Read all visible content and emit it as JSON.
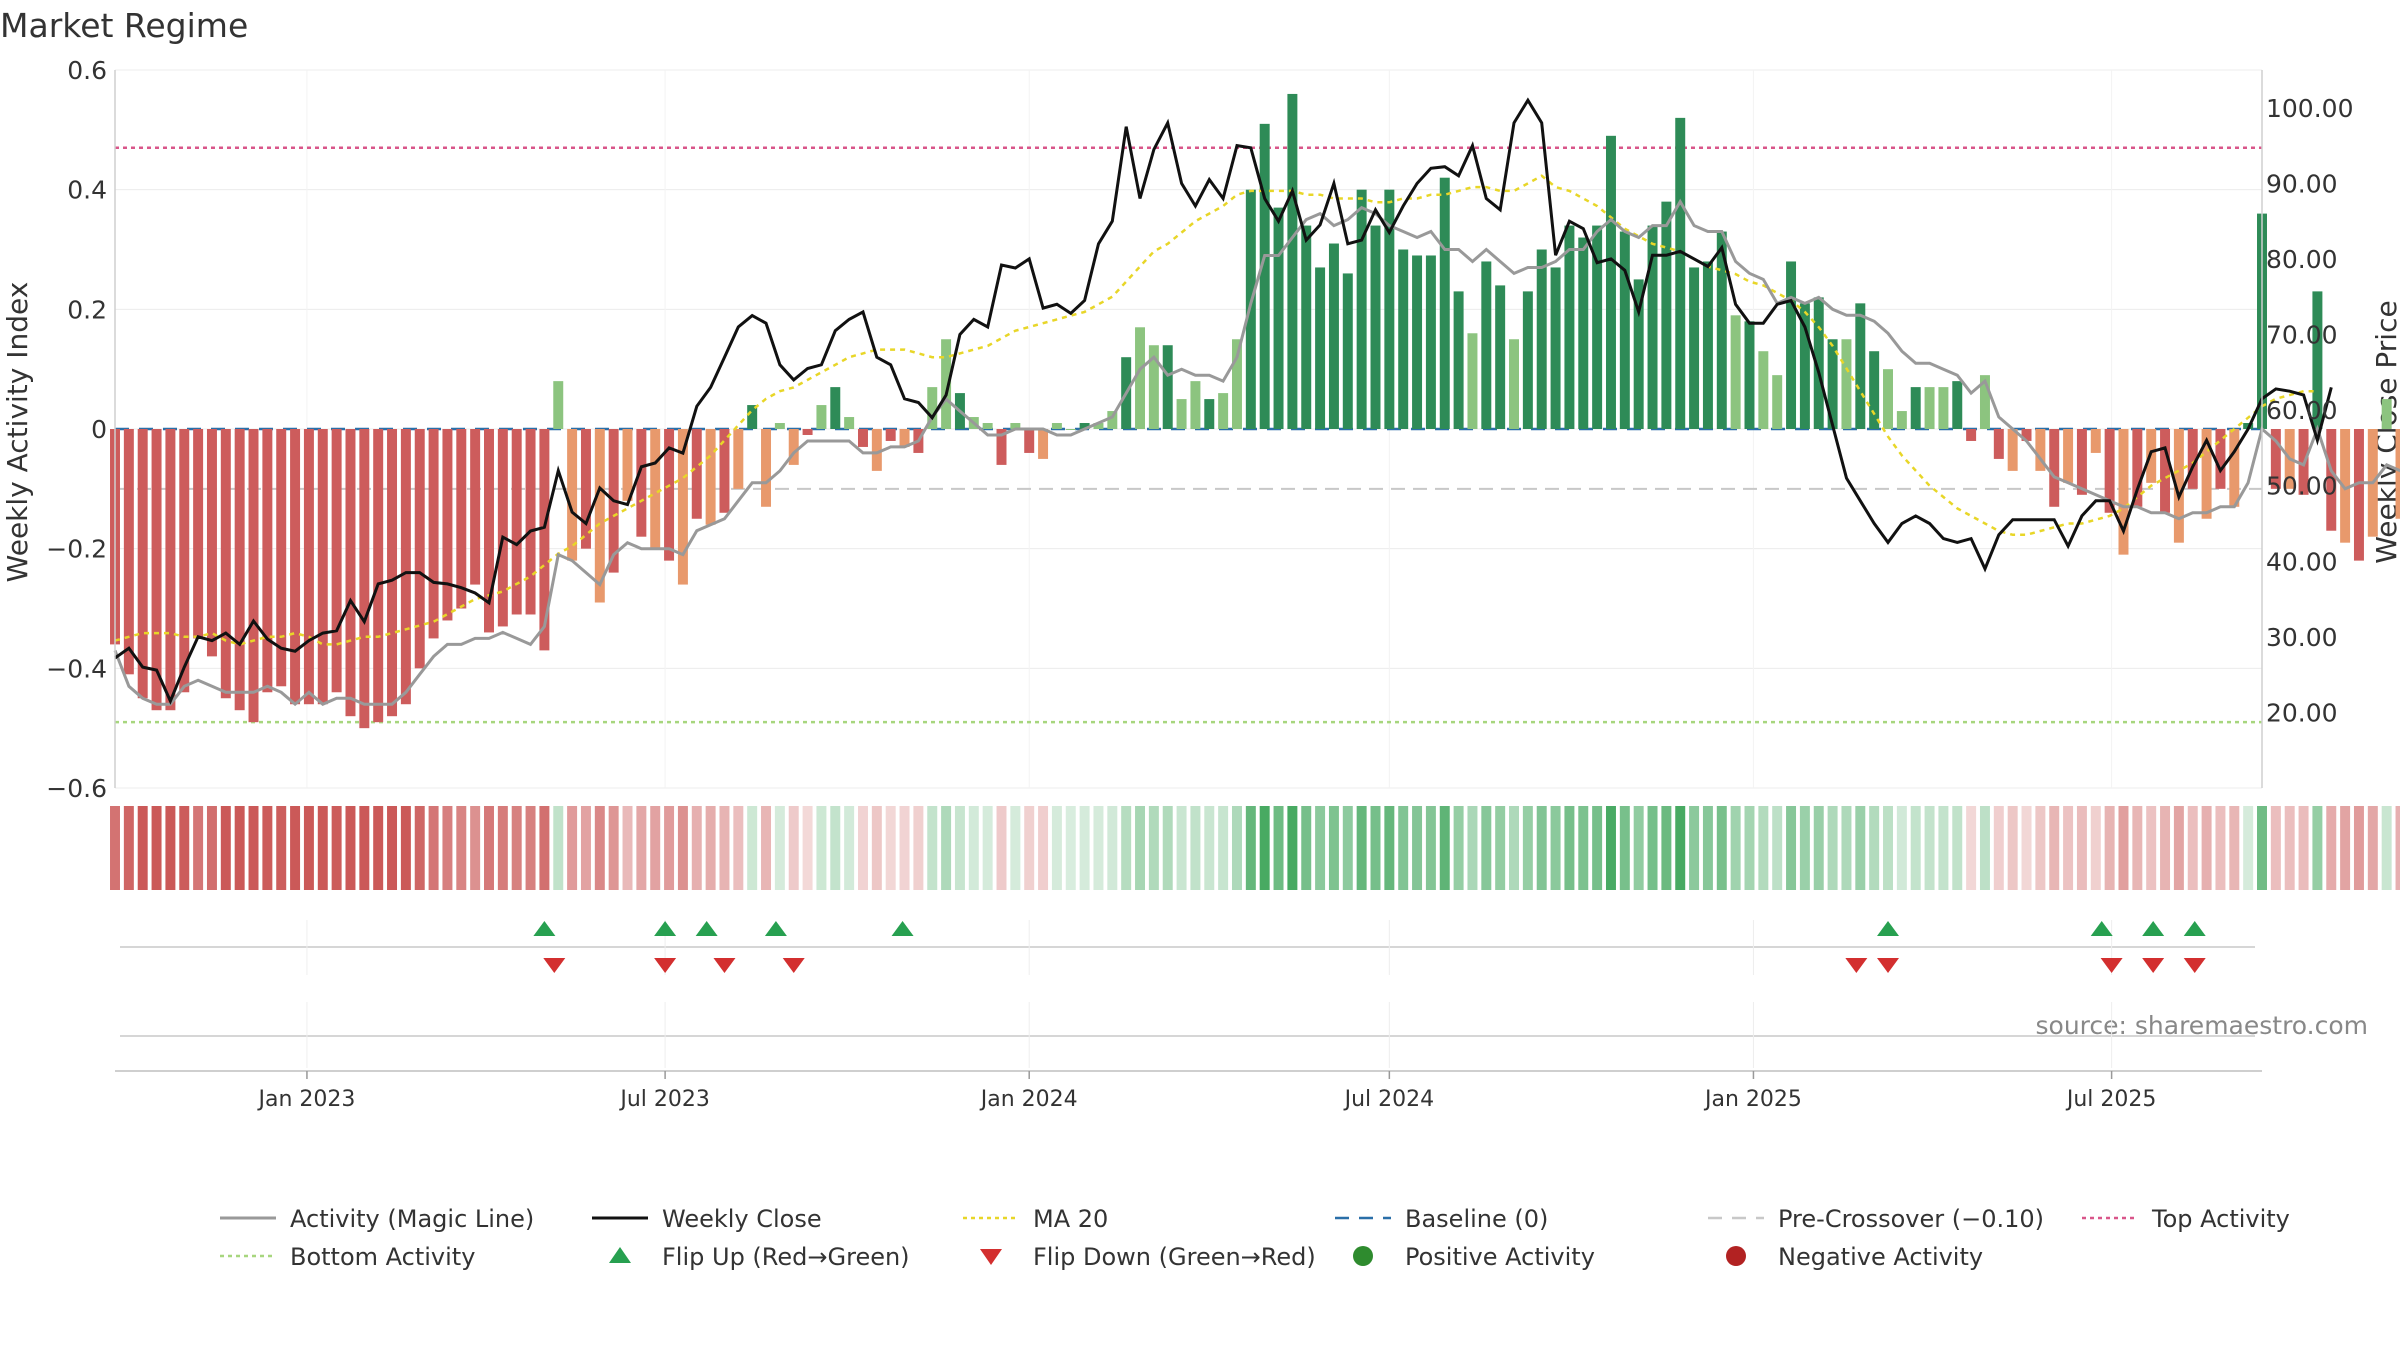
{
  "title": "Market Regime",
  "source": "source: sharemaestro.com",
  "chart_data": {
    "type": "bar",
    "title": "Market Regime",
    "ylabel_left": "Weekly Activity Index",
    "ylabel_right": "Weekly Close Price",
    "ylim_left": [
      -0.6,
      0.6
    ],
    "yticks_left": [
      "−0.6",
      "−0.4",
      "−0.2",
      "0",
      "0.2",
      "0.4",
      "0.6"
    ],
    "ylim_right": [
      10,
      105
    ],
    "yticks_right": [
      "20.00",
      "30.00",
      "40.00",
      "50.00",
      "60.00",
      "70.00",
      "80.00",
      "90.00",
      "100.00"
    ],
    "x_range": [
      "2022-09-26",
      "2025-09-15"
    ],
    "x_ticks": [
      {
        "date": "2023-01-01",
        "label": "Jan 2023"
      },
      {
        "date": "2023-07-01",
        "label": "Jul 2023"
      },
      {
        "date": "2024-01-01",
        "label": "Jan 2024"
      },
      {
        "date": "2024-07-01",
        "label": "Jul 2024"
      },
      {
        "date": "2025-01-01",
        "label": "Jan 2025"
      },
      {
        "date": "2025-07-01",
        "label": "Jul 2025"
      }
    ],
    "reference_lines": {
      "top_activity": 0.47,
      "bottom_activity": -0.49,
      "pre_crossover": -0.1,
      "baseline": 0
    },
    "activity_start": "2022-09-26",
    "activity": [
      -0.36,
      -0.41,
      -0.45,
      -0.47,
      -0.47,
      -0.44,
      -0.35,
      -0.38,
      -0.45,
      -0.47,
      -0.49,
      -0.44,
      -0.43,
      -0.46,
      -0.46,
      -0.46,
      -0.44,
      -0.48,
      -0.5,
      -0.49,
      -0.48,
      -0.46,
      -0.4,
      -0.35,
      -0.32,
      -0.3,
      -0.26,
      -0.34,
      -0.33,
      -0.31,
      -0.31,
      -0.37,
      0.08,
      -0.22,
      -0.2,
      -0.29,
      -0.24,
      -0.12,
      -0.18,
      -0.2,
      -0.22,
      -0.26,
      -0.15,
      -0.16,
      -0.14,
      -0.1,
      0.04,
      -0.13,
      0.01,
      -0.06,
      -0.01,
      0.04,
      0.07,
      0.02,
      -0.03,
      -0.07,
      -0.02,
      -0.03,
      -0.04,
      0.07,
      0.15,
      0.06,
      0.02,
      0.01,
      -0.06,
      0.01,
      -0.04,
      -0.05,
      0.01,
      0.0,
      0.01,
      0.01,
      0.03,
      0.12,
      0.17,
      0.14,
      0.14,
      0.05,
      0.08,
      0.05,
      0.06,
      0.15,
      0.4,
      0.51,
      0.37,
      0.56,
      0.34,
      0.27,
      0.31,
      0.26,
      0.4,
      0.34,
      0.4,
      0.3,
      0.29,
      0.29,
      0.42,
      0.23,
      0.16,
      0.28,
      0.24,
      0.15,
      0.23,
      0.3,
      0.27,
      0.34,
      0.32,
      0.34,
      0.49,
      0.33,
      0.25,
      0.34,
      0.38,
      0.52,
      0.27,
      0.28,
      0.33,
      0.19,
      0.18,
      0.13,
      0.09,
      0.28,
      0.21,
      0.22,
      0.15,
      0.15,
      0.21,
      0.13,
      0.1,
      0.03,
      0.07,
      0.07,
      0.07,
      0.08,
      -0.02,
      0.09,
      -0.05,
      -0.07,
      -0.02,
      -0.07,
      -0.13,
      -0.09,
      -0.11,
      -0.04,
      -0.14,
      -0.21,
      -0.13,
      -0.09,
      -0.14,
      -0.19,
      -0.1,
      -0.15,
      -0.1,
      -0.13,
      0.01,
      0.36,
      -0.1,
      -0.1,
      -0.11,
      0.23,
      -0.17,
      -0.19,
      -0.22,
      -0.18,
      0.05,
      -0.15,
      -0.2,
      -0.11
    ],
    "magic_line": [
      -0.37,
      -0.43,
      -0.45,
      -0.46,
      -0.46,
      -0.43,
      -0.42,
      -0.43,
      -0.44,
      -0.44,
      -0.44,
      -0.43,
      -0.44,
      -0.46,
      -0.44,
      -0.46,
      -0.45,
      -0.45,
      -0.46,
      -0.46,
      -0.46,
      -0.44,
      -0.41,
      -0.38,
      -0.36,
      -0.36,
      -0.35,
      -0.35,
      -0.34,
      -0.35,
      -0.36,
      -0.33,
      -0.21,
      -0.22,
      -0.24,
      -0.26,
      -0.21,
      -0.19,
      -0.2,
      -0.2,
      -0.2,
      -0.21,
      -0.17,
      -0.16,
      -0.15,
      -0.12,
      -0.09,
      -0.09,
      -0.07,
      -0.04,
      -0.02,
      -0.02,
      -0.02,
      -0.02,
      -0.04,
      -0.04,
      -0.03,
      -0.03,
      -0.02,
      0.02,
      0.05,
      0.03,
      0.01,
      -0.01,
      -0.01,
      0.0,
      0.0,
      0.0,
      -0.01,
      -0.01,
      0.0,
      0.01,
      0.02,
      0.06,
      0.1,
      0.12,
      0.09,
      0.1,
      0.09,
      0.09,
      0.08,
      0.12,
      0.21,
      0.29,
      0.29,
      0.32,
      0.35,
      0.36,
      0.34,
      0.35,
      0.37,
      0.36,
      0.34,
      0.33,
      0.32,
      0.33,
      0.3,
      0.3,
      0.28,
      0.3,
      0.28,
      0.26,
      0.27,
      0.27,
      0.28,
      0.3,
      0.3,
      0.33,
      0.35,
      0.33,
      0.32,
      0.34,
      0.34,
      0.38,
      0.34,
      0.33,
      0.33,
      0.28,
      0.26,
      0.25,
      0.21,
      0.22,
      0.21,
      0.22,
      0.2,
      0.19,
      0.19,
      0.18,
      0.16,
      0.13,
      0.11,
      0.11,
      0.1,
      0.09,
      0.06,
      0.08,
      0.02,
      0.0,
      -0.02,
      -0.05,
      -0.08,
      -0.09,
      -0.1,
      -0.11,
      -0.12,
      -0.13,
      -0.13,
      -0.14,
      -0.14,
      -0.15,
      -0.14,
      -0.14,
      -0.13,
      -0.13,
      -0.09,
      0.0,
      -0.02,
      -0.05,
      -0.06,
      0.0,
      -0.07,
      -0.1,
      -0.09,
      -0.09,
      -0.06,
      -0.07,
      -0.09,
      -0.11
    ],
    "price_start": "2022-09-26",
    "weekly_close": [
      27.2,
      28.5,
      26.0,
      25.6,
      21.5,
      26.0,
      30.0,
      29.5,
      30.5,
      29.0,
      32.1,
      29.7,
      28.5,
      28.1,
      29.5,
      30.5,
      30.8,
      34.8,
      32.0,
      37.0,
      37.5,
      38.5,
      38.5,
      37.2,
      37.0,
      36.5,
      35.8,
      34.5,
      43.2,
      42.2,
      44.0,
      44.5,
      52.0,
      46.5,
      45.0,
      49.7,
      48.0,
      47.5,
      52.5,
      53.0,
      55.0,
      54.3,
      60.5,
      63.0,
      67.0,
      71.0,
      72.5,
      71.5,
      66.0,
      64.0,
      65.5,
      66.0,
      70.5,
      72.0,
      73.0,
      67.0,
      66.0,
      61.5,
      61.0,
      59.0,
      62.0,
      70.0,
      72.0,
      71.0,
      79.2,
      78.8,
      80.0,
      73.5,
      74.0,
      72.8,
      74.5,
      82.0,
      85.0,
      97.5,
      88.0,
      94.5,
      98.0,
      90.0,
      87.0,
      90.5,
      88.0,
      95.0,
      94.7,
      88.0,
      85.0,
      89.0,
      82.5,
      84.5,
      90.0,
      82.0,
      82.5,
      86.5,
      83.5,
      87.0,
      90.0,
      92.0,
      92.2,
      91.0,
      95.0,
      88.0,
      86.5,
      98.0,
      101.0,
      98.0,
      80.5,
      85.0,
      84.0,
      79.5,
      80.0,
      78.5,
      73.0,
      80.5,
      80.5,
      81.0,
      80.0,
      79.0,
      81.5,
      74.0,
      71.5,
      71.5,
      74.0,
      74.5,
      71.0,
      65.0,
      58.0,
      51.0,
      48.0,
      45.0,
      42.5,
      45.0,
      46.0,
      45.0,
      43.0,
      42.5,
      43.0,
      39.0,
      43.5,
      45.5,
      45.5,
      45.5,
      45.5,
      42.0,
      46.0,
      48.0,
      48.0,
      44.0,
      49.5,
      54.5,
      55.0,
      48.5,
      52.5,
      56.0,
      52.0,
      54.5,
      57.5,
      61.5,
      62.8,
      62.5,
      62.0,
      56.0,
      63.0
    ],
    "ma20": [
      29.5,
      30.0,
      30.5,
      30.5,
      30.5,
      30.0,
      30.0,
      30.5,
      29.5,
      29.0,
      29.5,
      30.0,
      30.0,
      30.5,
      30.0,
      29.0,
      29.0,
      29.5,
      30.0,
      30.0,
      30.5,
      31.0,
      31.5,
      32.0,
      33.0,
      34.0,
      35.0,
      35.5,
      36.0,
      37.0,
      38.0,
      39.5,
      41.0,
      42.0,
      43.5,
      45.0,
      46.0,
      47.0,
      48.0,
      49.0,
      50.0,
      51.0,
      52.5,
      54.0,
      56.0,
      58.0,
      60.0,
      61.5,
      62.5,
      63.0,
      64.0,
      65.0,
      66.0,
      67.0,
      67.5,
      68.0,
      68.0,
      68.0,
      67.5,
      67.0,
      67.0,
      67.5,
      68.0,
      68.5,
      69.5,
      70.5,
      71.0,
      71.5,
      72.0,
      72.5,
      73.0,
      74.0,
      75.0,
      77.0,
      79.0,
      81.0,
      82.0,
      83.5,
      85.0,
      86.0,
      87.0,
      88.5,
      89.0,
      89.0,
      89.0,
      89.0,
      88.5,
      88.5,
      88.0,
      88.0,
      88.0,
      87.5,
      87.5,
      88.0,
      88.0,
      88.5,
      88.5,
      89.0,
      89.5,
      89.5,
      89.0,
      89.0,
      90.0,
      91.0,
      89.5,
      89.0,
      88.0,
      87.0,
      85.5,
      84.0,
      83.0,
      82.0,
      81.5,
      81.0,
      80.0,
      79.0,
      78.5,
      78.0,
      77.0,
      76.5,
      75.5,
      74.5,
      73.0,
      71.0,
      68.5,
      65.5,
      62.5,
      59.5,
      56.5,
      54.0,
      52.0,
      50.0,
      48.5,
      47.0,
      46.0,
      45.0,
      44.0,
      43.5,
      43.5,
      44.0,
      44.5,
      45.0,
      45.0,
      45.5,
      46.0,
      47.0,
      48.5,
      50.0,
      51.0,
      52.0,
      53.0,
      54.5,
      56.0,
      57.5,
      59.0,
      60.5,
      61.5,
      62.0,
      62.5,
      62.5
    ],
    "flip_up_dates": [
      "2023-05-01",
      "2023-07-01",
      "2023-07-22",
      "2023-08-26",
      "2023-10-29",
      "2025-03-10",
      "2025-06-26",
      "2025-07-22",
      "2025-08-12"
    ],
    "flip_down_dates": [
      "2023-05-06",
      "2023-07-01",
      "2023-07-31",
      "2023-09-04",
      "2025-02-22",
      "2025-03-10",
      "2025-07-01",
      "2025-07-22",
      "2025-08-12"
    ]
  },
  "legend": [
    {
      "label": "Activity (Magic Line)",
      "marker": "line",
      "color": "#999999"
    },
    {
      "label": "Weekly Close",
      "marker": "line",
      "color": "#111111"
    },
    {
      "label": "MA 20",
      "marker": "dotted",
      "color": "#e8d628"
    },
    {
      "label": "Baseline (0)",
      "marker": "dashed",
      "color": "#2a6fa8"
    },
    {
      "label": "Pre-Crossover (−0.10)",
      "marker": "dashed",
      "color": "#c8c8c8"
    },
    {
      "label": "Top Activity",
      "marker": "dotted",
      "color": "#d9568a"
    },
    {
      "label": "Bottom Activity",
      "marker": "dotted",
      "color": "#a7d67e"
    },
    {
      "label": "Flip Up (Red→Green)",
      "marker": "triangle-up",
      "color": "#27a050"
    },
    {
      "label": "Flip Down (Green→Red)",
      "marker": "triangle-down",
      "color": "#d32f2f"
    },
    {
      "label": "Positive Activity",
      "marker": "circle",
      "color": "#2e8b2e"
    },
    {
      "label": "Negative Activity",
      "marker": "circle",
      "color": "#b22222"
    }
  ],
  "colors": {
    "strong_positive": "#2e8b57",
    "mild_positive": "#8cc47f",
    "strong_negative": "#cd5c5c",
    "mild_negative": "#e8996c"
  }
}
